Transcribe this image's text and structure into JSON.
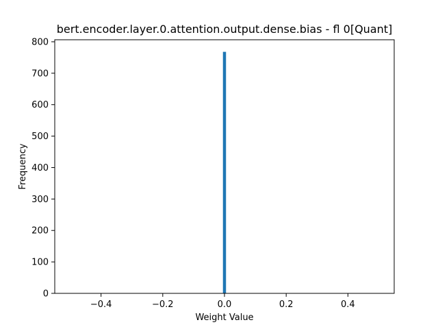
{
  "chart_data": {
    "type": "bar",
    "title": "bert.encoder.layer.0.attention.output.dense.bias - fl 0[Quant]",
    "xlabel": "Weight Value",
    "ylabel": "Frequency",
    "xlim": [
      -0.55,
      0.55
    ],
    "ylim": [
      0,
      806.4
    ],
    "xticks": [
      -0.4,
      -0.2,
      0.0,
      0.2,
      0.4
    ],
    "xtick_labels": [
      "−0.4",
      "−0.2",
      "0.0",
      "0.2",
      "0.4"
    ],
    "yticks": [
      0,
      100,
      200,
      300,
      400,
      500,
      600,
      700,
      800
    ],
    "ytick_labels": [
      "0",
      "100",
      "200",
      "300",
      "400",
      "500",
      "600",
      "700",
      "800"
    ],
    "bars": [
      {
        "x0": -0.005,
        "x1": 0.005,
        "value": 768
      }
    ],
    "bar_color": "#1f77b4",
    "grid": false,
    "legend": "none"
  }
}
